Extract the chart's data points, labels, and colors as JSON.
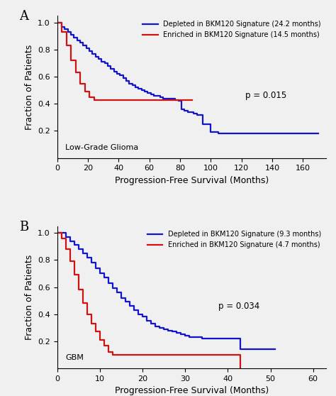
{
  "panel_A": {
    "title_label": "A",
    "xlabel": "Progression-Free Survival (Months)",
    "ylabel": "Fraction of Patients",
    "xlim": [
      0,
      175
    ],
    "ylim": [
      0,
      1.05
    ],
    "xticks": [
      0,
      20,
      40,
      60,
      80,
      100,
      120,
      140,
      160
    ],
    "yticks": [
      0.2,
      0.4,
      0.6,
      0.8,
      1.0
    ],
    "annotation": "Low-Grade Glioma",
    "pvalue": "p = 0.015",
    "legend1": "Depleted in BKM120 Signature (24.2 months)",
    "legend2": "Enriched in BKM120 Signature (14.5 months)",
    "blue_x": [
      0,
      3,
      5,
      7,
      9,
      11,
      13,
      15,
      17,
      19,
      21,
      23,
      25,
      27,
      29,
      31,
      33,
      35,
      37,
      39,
      41,
      43,
      45,
      47,
      49,
      51,
      53,
      55,
      57,
      59,
      61,
      63,
      65,
      67,
      69,
      71,
      73,
      75,
      77,
      79,
      81,
      83,
      85,
      87,
      89,
      91,
      95,
      100,
      105,
      170
    ],
    "blue_y": [
      1.0,
      0.97,
      0.95,
      0.93,
      0.91,
      0.89,
      0.87,
      0.85,
      0.83,
      0.81,
      0.79,
      0.77,
      0.75,
      0.73,
      0.71,
      0.7,
      0.68,
      0.66,
      0.64,
      0.62,
      0.61,
      0.59,
      0.57,
      0.55,
      0.54,
      0.52,
      0.51,
      0.5,
      0.49,
      0.48,
      0.47,
      0.46,
      0.46,
      0.45,
      0.44,
      0.44,
      0.44,
      0.44,
      0.43,
      0.42,
      0.36,
      0.35,
      0.34,
      0.34,
      0.33,
      0.32,
      0.25,
      0.19,
      0.18,
      0.18
    ],
    "red_x": [
      0,
      3,
      6,
      9,
      12,
      15,
      18,
      21,
      24,
      27,
      30,
      88
    ],
    "red_y": [
      1.0,
      0.93,
      0.83,
      0.72,
      0.63,
      0.55,
      0.49,
      0.45,
      0.43,
      0.43,
      0.43,
      0.43
    ]
  },
  "panel_B": {
    "title_label": "B",
    "xlabel": "Progression-Free Survival (Months)",
    "ylabel": "Fraction of Patients",
    "xlim": [
      0,
      63
    ],
    "ylim": [
      0,
      1.05
    ],
    "xticks": [
      0,
      10,
      20,
      30,
      40,
      50,
      60
    ],
    "yticks": [
      0.2,
      0.4,
      0.6,
      0.8,
      1.0
    ],
    "annotation": "GBM",
    "pvalue": "p = 0.034",
    "legend1": "Depleted in BKM120 Signature (9.3 months)",
    "legend2": "Enriched in BKM120 Signature (4.7 months)",
    "blue_x": [
      0,
      1,
      2,
      3,
      4,
      5,
      6,
      7,
      8,
      9,
      10,
      11,
      12,
      13,
      14,
      15,
      16,
      17,
      18,
      19,
      20,
      21,
      22,
      23,
      24,
      25,
      26,
      27,
      28,
      29,
      30,
      31,
      32,
      33,
      34,
      35,
      36,
      37,
      38,
      39,
      40,
      41,
      42,
      43,
      51
    ],
    "blue_y": [
      1.0,
      1.0,
      0.97,
      0.94,
      0.91,
      0.88,
      0.85,
      0.82,
      0.78,
      0.74,
      0.7,
      0.67,
      0.63,
      0.59,
      0.56,
      0.52,
      0.49,
      0.46,
      0.43,
      0.4,
      0.38,
      0.35,
      0.33,
      0.31,
      0.3,
      0.29,
      0.28,
      0.27,
      0.26,
      0.25,
      0.24,
      0.23,
      0.23,
      0.23,
      0.22,
      0.22,
      0.22,
      0.22,
      0.22,
      0.22,
      0.22,
      0.22,
      0.22,
      0.14,
      0.14
    ],
    "red_x": [
      0,
      1,
      2,
      3,
      4,
      5,
      6,
      7,
      8,
      9,
      10,
      11,
      12,
      13,
      14,
      42,
      43
    ],
    "red_y": [
      1.0,
      0.96,
      0.88,
      0.79,
      0.69,
      0.58,
      0.48,
      0.4,
      0.33,
      0.27,
      0.21,
      0.17,
      0.12,
      0.1,
      0.1,
      0.1,
      0.0
    ]
  },
  "blue_color": "#1414CC",
  "red_color": "#CC1414",
  "bg_color": "#f0f0f0",
  "axes_bg": "#f0f0f0",
  "linewidth": 1.6,
  "font_size": 8,
  "label_fontsize": 9,
  "title_fontsize": 13,
  "legend_fontsize": 7.0
}
